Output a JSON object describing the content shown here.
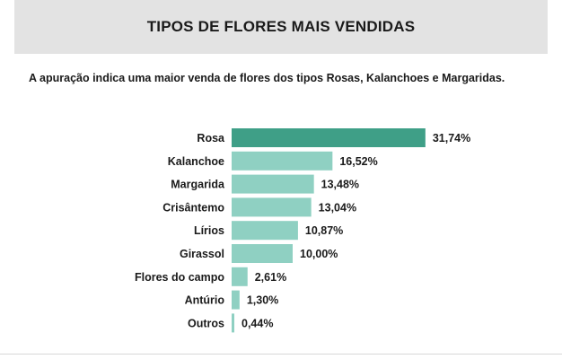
{
  "header": {
    "title": "TIPOS DE FLORES MAIS VENDIDAS"
  },
  "summary": {
    "text": "A apuração indica uma maior venda de flores dos tipos Rosas, Kalanchoes e Margaridas."
  },
  "chart_data": {
    "type": "bar",
    "orientation": "horizontal",
    "categories": [
      "Rosa",
      "Kalanchoe",
      "Margarida",
      "Crisântemo",
      "Lírios",
      "Girassol",
      "Flores do campo",
      "Antúrio",
      "Outros"
    ],
    "values": [
      31.74,
      16.52,
      13.48,
      13.04,
      10.87,
      10.0,
      2.61,
      1.3,
      0.44
    ],
    "value_labels": [
      "31,74%",
      "16,52%",
      "13,48%",
      "13,04%",
      "10,87%",
      "10,00%",
      "2,61%",
      "1,30%",
      "0,44%"
    ],
    "unit": "%",
    "title": "",
    "xlabel": "",
    "ylabel": "",
    "grid": false,
    "colors": {
      "top_bar": "#3f9f87",
      "other_bars": "#8fd0c2"
    }
  }
}
